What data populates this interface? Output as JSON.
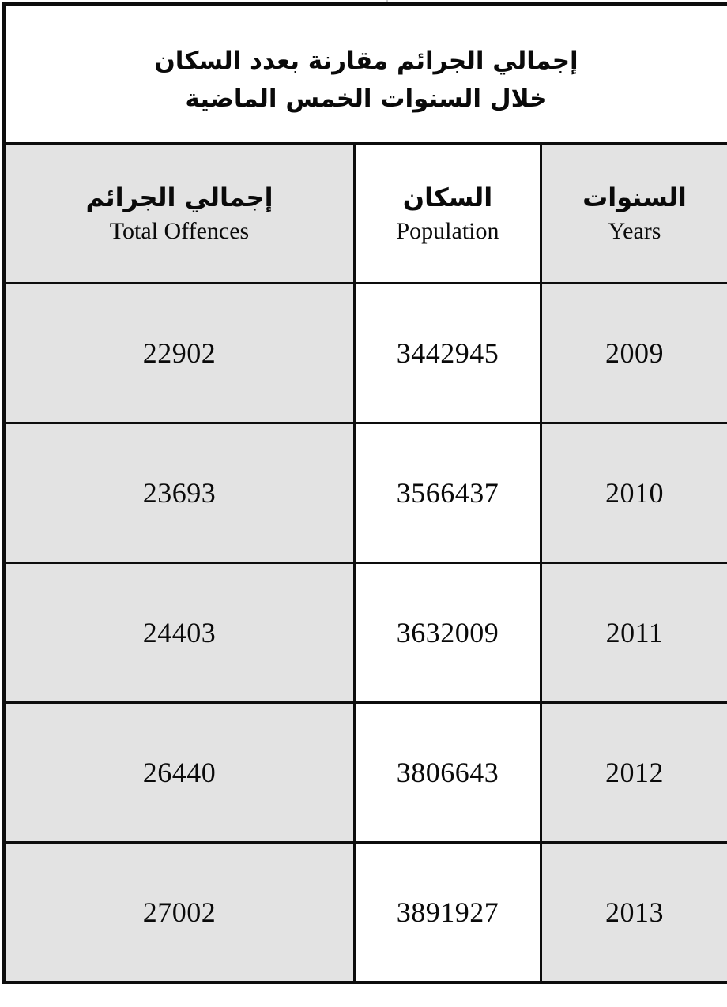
{
  "title": {
    "line1": "إجمالي الجرائم مقارنة بعدد السكان",
    "line2": "خلال السنوات الخمس الماضية"
  },
  "table": {
    "header": {
      "offences": {
        "ar": "إجمالي الجرائم",
        "en": "Total Offences"
      },
      "population": {
        "ar": "السكان",
        "en": "Population"
      },
      "years": {
        "ar": "السنوات",
        "en": "Years"
      }
    },
    "rows": [
      {
        "offences": "22902",
        "population": "3442945",
        "year": "2009"
      },
      {
        "offences": "23693",
        "population": "3566437",
        "year": "2010"
      },
      {
        "offences": "24403",
        "population": "3632009",
        "year": "2011"
      },
      {
        "offences": "26440",
        "population": "3806643",
        "year": "2012"
      },
      {
        "offences": "27002",
        "population": "3891927",
        "year": "2013"
      }
    ]
  },
  "colors": {
    "cell_grey": "#e3e3e3",
    "cell_white": "#ffffff",
    "border_black": "#0d0d0d"
  },
  "chart_data": {
    "type": "table",
    "title": [
      "إجمالي الجرائم مقارنة بعدد السكان",
      "خلال السنوات الخمس الماضية"
    ],
    "columns": [
      "Total Offences",
      "Population",
      "Years"
    ],
    "years": [
      2009,
      2010,
      2011,
      2012,
      2013
    ],
    "total_offences": [
      22902,
      23693,
      24403,
      26440,
      27002
    ],
    "population": [
      3442945,
      3566437,
      3632009,
      3806643,
      3891927
    ]
  }
}
